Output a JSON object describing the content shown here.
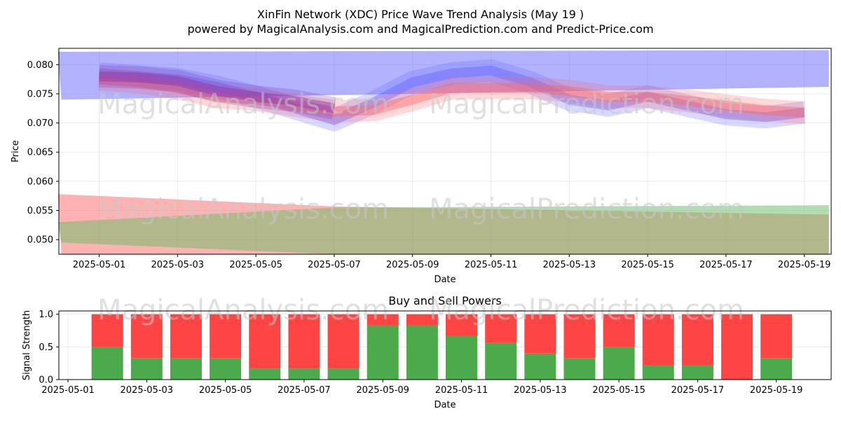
{
  "title": "XinFin Network (XDC) Price Wave Trend Analysis (May 19 )",
  "subtitle": "powered by MagicalAnalysis.com and MagicalPrediction.com and Predict-Price.com",
  "watermarks": [
    "MagicalAnalysis.com",
    "MagicalPrediction.com"
  ],
  "colors": {
    "blue_band": "#6666ff",
    "red_band": "#ff6666",
    "green_band": "#66bb66",
    "purple_band": "#8833aa",
    "buy": "#4caa4c",
    "sell": "#ff4444"
  },
  "chart_data": [
    {
      "type": "area",
      "xlabel": "Date",
      "ylabel": "Price",
      "ylim": [
        0.0475,
        0.0828
      ],
      "grid": true,
      "x_ticks": [
        "2025-05-01",
        "2025-05-03",
        "2025-05-05",
        "2025-05-07",
        "2025-05-09",
        "2025-05-11",
        "2025-05-13",
        "2025-05-15",
        "2025-05-17",
        "2025-05-19"
      ],
      "y_ticks": [
        "0.050",
        "0.055",
        "0.060",
        "0.065",
        "0.070",
        "0.075",
        "0.080"
      ],
      "x": [
        "2025-04-30",
        "2025-05-01",
        "2025-05-02",
        "2025-05-03",
        "2025-05-04",
        "2025-05-05",
        "2025-05-06",
        "2025-05-07",
        "2025-05-08",
        "2025-05-09",
        "2025-05-10",
        "2025-05-11",
        "2025-05-12",
        "2025-05-13",
        "2025-05-14",
        "2025-05-15",
        "2025-05-16",
        "2025-05-17",
        "2025-05-18",
        "2025-05-19"
      ],
      "series": [
        {
          "kind": "band",
          "color": "#6666ff",
          "x": [
            "2025-04-30",
            "2025-05-19"
          ],
          "upper": [
            0.0822,
            0.0825
          ],
          "lower": [
            0.074,
            0.0762
          ]
        },
        {
          "kind": "band",
          "color": "#ff6666",
          "x": [
            "2025-04-30",
            "2025-05-07",
            "2025-05-19"
          ],
          "upper": [
            0.0578,
            0.0557,
            0.0543
          ],
          "lower": [
            0.0475,
            0.0475,
            0.0475
          ]
        },
        {
          "kind": "band",
          "color": "#66bb66",
          "x": [
            "2025-04-30",
            "2025-05-07",
            "2025-05-19"
          ],
          "upper": [
            0.053,
            0.0555,
            0.0559
          ],
          "lower": [
            0.0495,
            0.0475,
            0.0475
          ]
        },
        {
          "kind": "line",
          "color": "#6666ff",
          "values": [
            0.0785,
            0.078,
            0.0775,
            0.0762,
            0.0745,
            0.0725,
            0.0705,
            0.0735,
            0.077,
            0.0785,
            0.079,
            0.077,
            0.074,
            0.073,
            0.0745,
            0.073,
            0.0715,
            0.071,
            0.0718
          ],
          "x": [
            "2025-05-01",
            "2025-05-02",
            "2025-05-03",
            "2025-05-04",
            "2025-05-05",
            "2025-05-06",
            "2025-05-07",
            "2025-05-08",
            "2025-05-09",
            "2025-05-10",
            "2025-05-11",
            "2025-05-12",
            "2025-05-13",
            "2025-05-14",
            "2025-05-15",
            "2025-05-16",
            "2025-05-17",
            "2025-05-18",
            "2025-05-19"
          ]
        },
        {
          "kind": "line",
          "color": "#ff6666",
          "values": [
            0.0775,
            0.077,
            0.076,
            0.0745,
            0.074,
            0.073,
            0.072,
            0.0722,
            0.074,
            0.076,
            0.076,
            0.076,
            0.0755,
            0.0745,
            0.0745,
            0.0738,
            0.073,
            0.0722,
            0.0718
          ],
          "x": [
            "2025-05-01",
            "2025-05-02",
            "2025-05-03",
            "2025-05-04",
            "2025-05-05",
            "2025-05-06",
            "2025-05-07",
            "2025-05-08",
            "2025-05-09",
            "2025-05-10",
            "2025-05-11",
            "2025-05-12",
            "2025-05-13",
            "2025-05-14",
            "2025-05-15",
            "2025-05-16",
            "2025-05-17",
            "2025-05-18",
            "2025-05-19"
          ]
        },
        {
          "kind": "line",
          "color": "#8833aa",
          "values": [
            0.078,
            0.0778,
            0.0772,
            0.0755,
            0.0745,
            0.0738,
            0.0725
          ],
          "x": [
            "2025-05-01",
            "2025-05-02",
            "2025-05-03",
            "2025-05-04",
            "2025-05-05",
            "2025-05-06",
            "2025-05-07"
          ]
        }
      ]
    },
    {
      "type": "bar",
      "title": "Buy and Sell Powers",
      "xlabel": "Date",
      "ylabel": "Signal Strength",
      "ylim": [
        0,
        1.05
      ],
      "grid": true,
      "x_ticks": [
        "2025-05-01",
        "2025-05-03",
        "2025-05-05",
        "2025-05-07",
        "2025-05-09",
        "2025-05-11",
        "2025-05-13",
        "2025-05-15",
        "2025-05-17",
        "2025-05-19"
      ],
      "y_ticks": [
        "0.0",
        "0.5",
        "1.0"
      ],
      "categories": [
        "2025-05-02",
        "2025-05-03",
        "2025-05-04",
        "2025-05-05",
        "2025-05-06",
        "2025-05-07",
        "2025-05-08",
        "2025-05-09",
        "2025-05-10",
        "2025-05-11",
        "2025-05-12",
        "2025-05-13",
        "2025-05-14",
        "2025-05-15",
        "2025-05-16",
        "2025-05-17",
        "2025-05-18",
        "2025-05-19"
      ],
      "series": [
        {
          "color": "#4caa4c",
          "values": [
            0.5,
            0.33,
            0.33,
            0.33,
            0.17,
            0.17,
            0.17,
            0.83,
            0.83,
            0.67,
            0.56,
            0.4,
            0.33,
            0.5,
            0.22,
            0.22,
            0.0,
            0.33
          ]
        },
        {
          "color": "#ff4444",
          "values": [
            0.5,
            0.67,
            0.67,
            0.67,
            0.83,
            0.83,
            0.83,
            0.17,
            0.17,
            0.33,
            0.44,
            0.6,
            0.67,
            0.5,
            0.78,
            0.78,
            1.0,
            0.67
          ]
        }
      ]
    }
  ]
}
